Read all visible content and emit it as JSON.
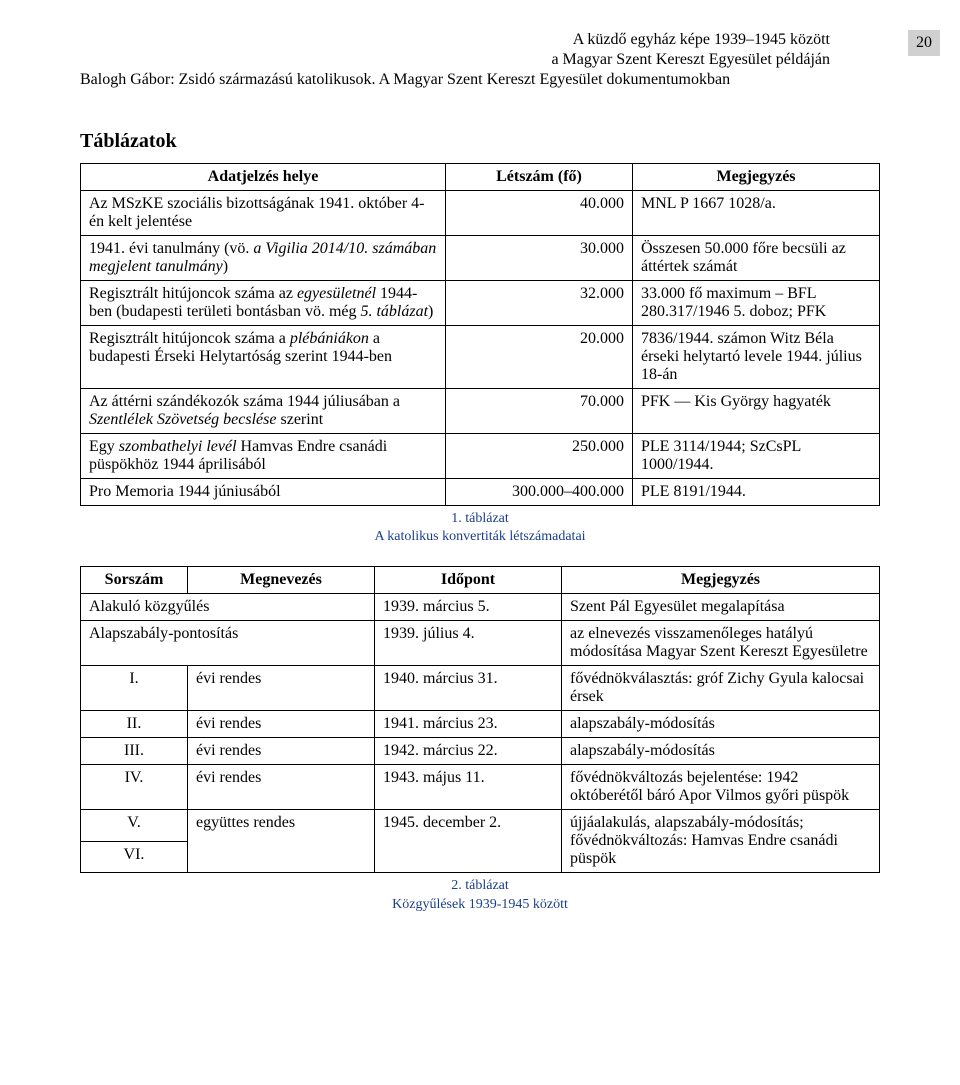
{
  "page_number": "20",
  "header": {
    "right_lines": [
      "A küzdő egyház képe 1939–1945 között",
      "a Magyar Szent Kereszt Egyesület példáján"
    ],
    "left_lines": [
      "Balogh Gábor: Zsidó származású katolikusok. A Magyar Szent Kereszt Egyesület dokumentumokban"
    ]
  },
  "section_title": "Táblázatok",
  "table1": {
    "headers": [
      "Adatjelzés helye",
      "Létszám (fő)",
      "Megjegyzés"
    ],
    "rows": [
      {
        "source_parts": [
          {
            "t": "Az MSzKE szociális bizottságának 1941. október 4-én kelt jelentése",
            "i": false
          }
        ],
        "count": "40.000",
        "note": "MNL P 1667 1028/a."
      },
      {
        "source_parts": [
          {
            "t": "1941. évi tanulmány (vö. ",
            "i": false
          },
          {
            "t": "a Vigilia 2014/10. számában megjelent tanulmány",
            "i": true
          },
          {
            "t": ")",
            "i": false
          }
        ],
        "count": "30.000",
        "note": "Összesen 50.000 főre becsüli az áttértek számát"
      },
      {
        "source_parts": [
          {
            "t": "Regisztrált hitújoncok száma az ",
            "i": false
          },
          {
            "t": "egyesületnél",
            "i": true
          },
          {
            "t": " 1944-ben (budapesti területi bontásban vö. még ",
            "i": false
          },
          {
            "t": "5. táblázat",
            "i": true
          },
          {
            "t": ")",
            "i": false
          }
        ],
        "count": "32.000",
        "note": "33.000 fő maximum – BFL 280.317/1946 5. doboz; PFK"
      },
      {
        "source_parts": [
          {
            "t": "Regisztrált hitújoncok száma a ",
            "i": false
          },
          {
            "t": "plébániákon",
            "i": true
          },
          {
            "t": " a budapesti Érseki Helytartóság szerint 1944-ben",
            "i": false
          }
        ],
        "count": "20.000",
        "note": "7836/1944. számon Witz Béla érseki helytartó levele 1944. július 18-án"
      },
      {
        "source_parts": [
          {
            "t": "Az áttérni szándékozók száma 1944 júliusában a ",
            "i": false
          },
          {
            "t": "Szentlélek Szövetség becslése",
            "i": true
          },
          {
            "t": " szerint",
            "i": false
          }
        ],
        "count": "70.000",
        "note": "PFK — Kis György hagyaték"
      },
      {
        "source_parts": [
          {
            "t": "Egy ",
            "i": false
          },
          {
            "t": "szombathelyi levél",
            "i": true
          },
          {
            "t": " Hamvas Endre csanádi püspökhöz 1944 áprilisából",
            "i": false
          }
        ],
        "count": "250.000",
        "note": "PLE 3114/1944; SzCsPL 1000/1944."
      },
      {
        "source_parts": [
          {
            "t": "Pro Memoria 1944 júniusából",
            "i": false
          }
        ],
        "count": "300.000–400.000",
        "note": "PLE 8191/1944."
      }
    ],
    "caption_lines": [
      "1. táblázat",
      "A katolikus konvertiták létszámadatai"
    ]
  },
  "table2": {
    "headers": [
      "Sorszám",
      "Megnevezés",
      "Időpont",
      "Megjegyzés"
    ],
    "rows": [
      {
        "sor": "",
        "sor_span": true,
        "meg": "Alakuló közgyűlés",
        "ido": "1939. március 5.",
        "note": "Szent Pál Egyesület megalapítása"
      },
      {
        "sor": "",
        "sor_span": true,
        "meg": "Alapszabály-pontosítás",
        "ido": "1939. július 4.",
        "note": "az elnevezés visszamenőleges hatályú módosítása Magyar Szent Kereszt Egyesületre"
      },
      {
        "sor": "I.",
        "meg": "évi rendes",
        "ido": "1940. március 31.",
        "note": "fővédnökválasztás: gróf Zichy Gyula kalocsai érsek"
      },
      {
        "sor": "II.",
        "meg": "évi rendes",
        "ido": "1941. március 23.",
        "note": "alapszabály-módosítás"
      },
      {
        "sor": "III.",
        "meg": "évi rendes",
        "ido": "1942. március 22.",
        "note": "alapszabály-módosítás"
      },
      {
        "sor": "IV.",
        "meg": "évi rendes",
        "ido": "1943. május 11.",
        "note": "fővédnökváltozás bejelentése: 1942 októberétől báró Apor Vilmos győri püspök"
      },
      {
        "sor": "V.",
        "meg": "együttes rendes",
        "meg_rowspan": 2,
        "ido": "1945. december 2.",
        "ido_rowspan": 2,
        "note": "újjáalakulás, alapszabály-módosítás; fővédnökváltozás: Hamvas Endre csanádi püspök",
        "note_rowspan": 2
      },
      {
        "sor": "VI."
      }
    ],
    "caption_lines": [
      "2. táblázat",
      "Közgyűlések 1939-1945 között"
    ]
  }
}
